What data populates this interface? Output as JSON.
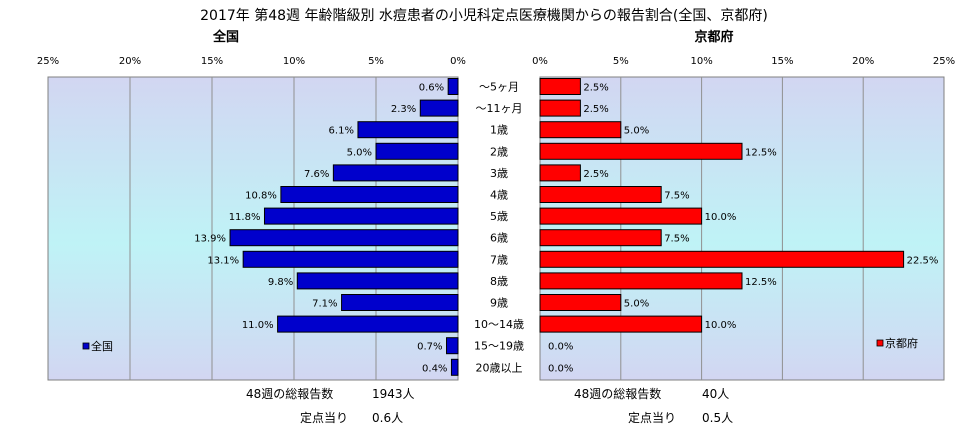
{
  "title": "2017年 第48週 年齢階級別 水痘患者の小児科定点医療機関からの報告割合(全国、京都府)",
  "left_panel_title": "全国",
  "right_panel_title": "京都府",
  "left_ticks": [
    "25%",
    "20%",
    "15%",
    "10%",
    "5%",
    "0%"
  ],
  "right_ticks": [
    "0%",
    "5%",
    "10%",
    "15%",
    "20%",
    "25%"
  ],
  "legend": {
    "left": "全国",
    "right": "京都府"
  },
  "colors": {
    "national": "#0000cc",
    "kyoto": "#ff0000",
    "border": "#000000"
  },
  "footer": {
    "left_reports_label": "48週の総報告数",
    "left_reports_value": "1943人",
    "left_per_label": "定点当り",
    "left_per_value": "0.6人",
    "right_reports_label": "48週の総報告数",
    "right_reports_value": "40人",
    "right_per_label": "定点当り",
    "right_per_value": "0.5人"
  },
  "chart_data": {
    "type": "bar",
    "orientation": "horizontal-butterfly",
    "categories": [
      "～5ヶ月",
      "～11ヶ月",
      "1歳",
      "2歳",
      "3歳",
      "4歳",
      "5歳",
      "6歳",
      "7歳",
      "8歳",
      "9歳",
      "10～14歳",
      "15～19歳",
      "20歳以上"
    ],
    "xlim": [
      0,
      25
    ],
    "series": [
      {
        "name": "全国",
        "values": [
          0.6,
          2.3,
          6.1,
          5.0,
          7.6,
          10.8,
          11.8,
          13.9,
          13.1,
          9.8,
          7.1,
          11.0,
          0.7,
          0.4
        ],
        "labels": [
          "0.6%",
          "2.3%",
          "6.1%",
          "5.0%",
          "7.6%",
          "10.8%",
          "11.8%",
          "13.9%",
          "13.1%",
          "9.8%",
          "7.1%",
          "11.0%",
          "0.7%",
          "0.4%"
        ]
      },
      {
        "name": "京都府",
        "values": [
          2.5,
          2.5,
          5.0,
          12.5,
          2.5,
          7.5,
          10.0,
          7.5,
          22.5,
          12.5,
          5.0,
          10.0,
          0.0,
          0.0
        ],
        "labels": [
          "2.5%",
          "2.5%",
          "5.0%",
          "12.5%",
          "2.5%",
          "7.5%",
          "10.0%",
          "7.5%",
          "22.5%",
          "12.5%",
          "5.0%",
          "10.0%",
          "0.0%",
          "0.0%"
        ]
      }
    ]
  }
}
